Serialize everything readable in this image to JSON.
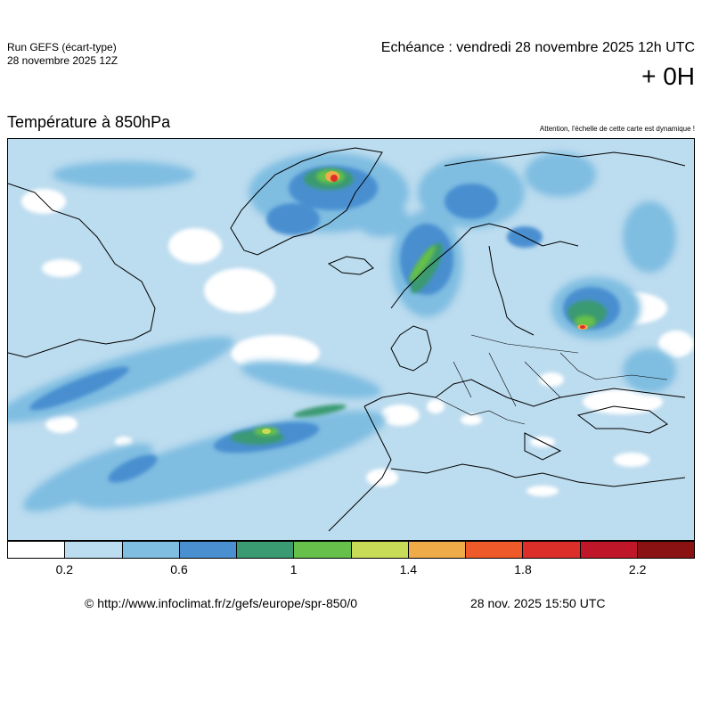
{
  "header": {
    "run_label": "Run GEFS (écart-type)",
    "run_date": "28 novembre 2025 12Z",
    "echeance": "Echéance : vendredi 28 novembre 2025 12h UTC",
    "lead_time": "+ 0H"
  },
  "title": "Température à 850hPa",
  "warning": "Attention, l'échelle de cette carte est dynamique !",
  "legend": {
    "colors": [
      "#ffffff",
      "#bcdcef",
      "#7fbde1",
      "#4a8fd0",
      "#3a9a72",
      "#66c04a",
      "#c8dc58",
      "#eeab48",
      "#ee5a2a",
      "#dd2f2a",
      "#c0162a",
      "#8a1212"
    ],
    "tick_labels": [
      "0.2",
      "0.6",
      "1",
      "1.4",
      "1.8",
      "2.2"
    ]
  },
  "footer": {
    "source_url": "© http://www.infoclimat.fr/z/gefs/europe/spr-850/0",
    "render_time": "28 nov. 2025 15:50 UTC"
  }
}
